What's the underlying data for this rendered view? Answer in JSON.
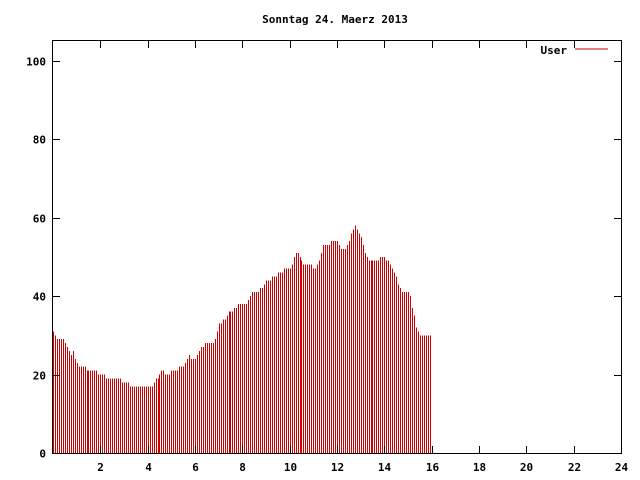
{
  "chart_data": {
    "type": "bar",
    "title": "Sonntag 24. Maerz 2013",
    "xlabel": "",
    "ylabel": "",
    "xlim": [
      0,
      24
    ],
    "ylim": [
      0,
      105
    ],
    "x_ticks": [
      "2",
      "4",
      "6",
      "8",
      "10",
      "12",
      "14",
      "16",
      "18",
      "20",
      "22",
      "24"
    ],
    "y_ticks": [
      "0",
      "20",
      "40",
      "60",
      "80",
      "100"
    ],
    "legend_position": "top-right",
    "grid": false,
    "series": [
      {
        "name": "User",
        "color": "#cc0000",
        "x_start": 0,
        "x_step": 0.0833333,
        "values": [
          31,
          30,
          29,
          29,
          29,
          29,
          28,
          27,
          26,
          25,
          26,
          24,
          23,
          22,
          22,
          22,
          22,
          21,
          21,
          21,
          21,
          21,
          21,
          20,
          20,
          20,
          20,
          19,
          19,
          19,
          19,
          19,
          19,
          19,
          19,
          18,
          18,
          18,
          18,
          17,
          17,
          17,
          17,
          17,
          17,
          17,
          17,
          17,
          17,
          17,
          17,
          18,
          19,
          19,
          20,
          21,
          21,
          20,
          20,
          20,
          21,
          21,
          21,
          21,
          22,
          22,
          22,
          23,
          24,
          25,
          24,
          24,
          24,
          25,
          26,
          27,
          27,
          28,
          28,
          28,
          28,
          28,
          29,
          31,
          33,
          33,
          34,
          34,
          35,
          36,
          36,
          36,
          37,
          37,
          38,
          38,
          38,
          38,
          38,
          39,
          40,
          41,
          41,
          41,
          41,
          42,
          42,
          43,
          44,
          44,
          44,
          45,
          45,
          45,
          46,
          46,
          46,
          47,
          47,
          47,
          47,
          48,
          50,
          51,
          51,
          50,
          49,
          48,
          48,
          48,
          48,
          48,
          47,
          47,
          48,
          49,
          51,
          53,
          53,
          53,
          53,
          54,
          54,
          54,
          54,
          53,
          52,
          52,
          52,
          53,
          54,
          56,
          57,
          58,
          57,
          56,
          55,
          53,
          51,
          50,
          49,
          49,
          49,
          49,
          49,
          49,
          50,
          50,
          50,
          49,
          49,
          48,
          47,
          46,
          45,
          43,
          42,
          41,
          41,
          41,
          41,
          40,
          37,
          35,
          32,
          31,
          30,
          30,
          30,
          30,
          30,
          30
        ]
      }
    ]
  }
}
